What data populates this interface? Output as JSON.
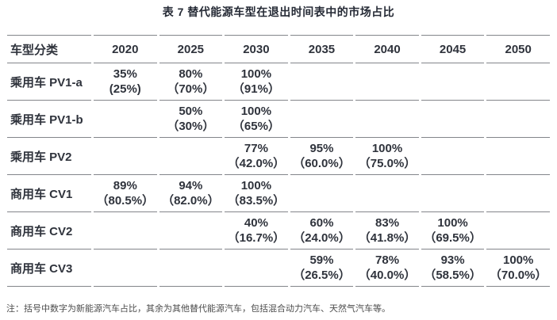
{
  "page": {
    "title": "表 7 替代能源车型在退出时间表中的市场占比",
    "footnote": "注：括号中数字为新能源汽车占比，其余为其他替代能源汽车，包括混合动力汽车、天然气汽车等。"
  },
  "colors": {
    "text": "#2f333c",
    "title_text": "#262b36",
    "border": "#83858a",
    "footnote_text": "#4c4c4c",
    "background": "#ffffff"
  },
  "table": {
    "type": "table",
    "header": [
      "车型分类",
      "2020",
      "2025",
      "2030",
      "2035",
      "2040",
      "2045",
      "2050"
    ],
    "rows": [
      {
        "label": "乘用车 PV1-a",
        "cells": [
          [
            "35%",
            "(25%)"
          ],
          [
            "80%",
            "（70%）"
          ],
          [
            "100%",
            "（91%）"
          ],
          null,
          null,
          null,
          null
        ]
      },
      {
        "label": "乘用车 PV1-b",
        "cells": [
          null,
          [
            "50%",
            "（30%）"
          ],
          [
            "100%",
            "（65%）"
          ],
          null,
          null,
          null,
          null
        ]
      },
      {
        "label": "乘用车 PV2",
        "cells": [
          null,
          null,
          [
            "77%",
            "（42.0%）"
          ],
          [
            "95%",
            "（60.0%）"
          ],
          [
            "100%",
            "（75.0%）"
          ],
          null,
          null
        ]
      },
      {
        "label": "商用车 CV1",
        "cells": [
          [
            "89%",
            "（80.5%）"
          ],
          [
            "94%",
            "（82.0%）"
          ],
          [
            "100%",
            "（83.5%）"
          ],
          null,
          null,
          null,
          null
        ]
      },
      {
        "label": "商用车 CV2",
        "cells": [
          null,
          null,
          [
            "40%",
            "（16.7%）"
          ],
          [
            "60%",
            "（24.0%）"
          ],
          [
            "83%",
            "（41.8%）"
          ],
          [
            "100%",
            "（69.5%）"
          ],
          null
        ]
      },
      {
        "label": "商用车 CV3",
        "cells": [
          null,
          null,
          null,
          [
            "59%",
            "（26.5%）"
          ],
          [
            "78%",
            "（40.0%）"
          ],
          [
            "93%",
            "（58.5%）"
          ],
          [
            "100%",
            "（70.0%）"
          ]
        ]
      }
    ]
  }
}
